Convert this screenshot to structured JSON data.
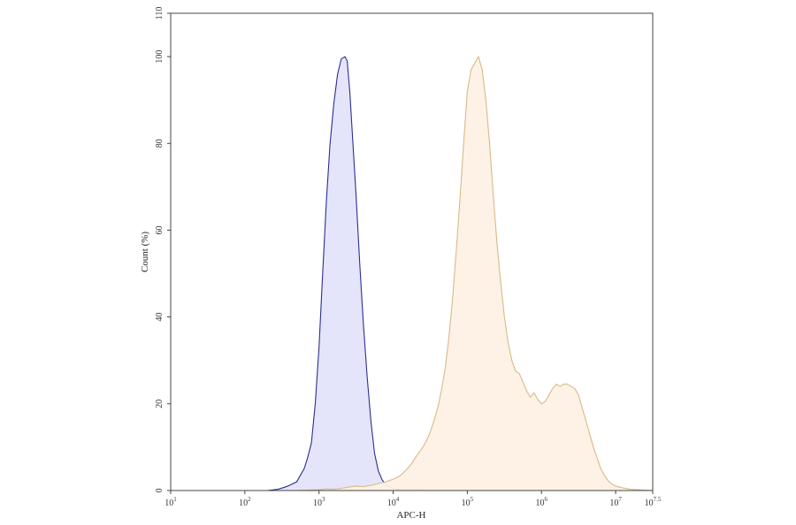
{
  "chart_data": {
    "type": "area",
    "title": "",
    "xlabel": "APC-H",
    "ylabel": "Count (%)",
    "x_scale": "log10",
    "xlim": [
      10,
      31622776
    ],
    "ylim": [
      0,
      110
    ],
    "x_ticks": [
      {
        "base": "10",
        "exp": "1",
        "value": 10
      },
      {
        "base": "10",
        "exp": "2",
        "value": 100
      },
      {
        "base": "10",
        "exp": "3",
        "value": 1000
      },
      {
        "base": "10",
        "exp": "4",
        "value": 10000
      },
      {
        "base": "10",
        "exp": "5",
        "value": 100000
      },
      {
        "base": "10",
        "exp": "6",
        "value": 1000000
      },
      {
        "base": "10",
        "exp": "7",
        "value": 10000000
      },
      {
        "base": "10",
        "exp": "7.5",
        "value": 31622776
      }
    ],
    "y_ticks": [
      "0",
      "20",
      "40",
      "60",
      "80",
      "100",
      "110"
    ],
    "y_tick_values": [
      0,
      20,
      40,
      60,
      80,
      100,
      110
    ],
    "grid": false,
    "series": [
      {
        "color": "#2b2f8f",
        "fill": "#e3e4fb",
        "x": [
          10,
          200,
          280,
          350,
          400,
          500,
          560,
          630,
          700,
          790,
          890,
          1000,
          1120,
          1260,
          1410,
          1580,
          1780,
          2000,
          2240,
          2400,
          2510,
          2600,
          2820,
          3160,
          3550,
          3980,
          4470,
          5010,
          5620,
          6310,
          7080,
          7940,
          8910,
          10000,
          11220,
          12590,
          14130,
          15850,
          20000,
          31620,
          50120,
          100000,
          1000000
        ],
        "y": [
          0,
          0,
          0.3,
          0.8,
          1.2,
          2,
          3.5,
          5,
          7.5,
          11,
          20,
          33,
          50,
          67,
          80,
          89,
          96,
          99.5,
          100,
          99,
          95,
          92,
          82,
          68,
          52,
          38,
          26,
          16,
          8.5,
          4.5,
          2.5,
          1.3,
          0.8,
          0.5,
          0.3,
          0.2,
          0.15,
          0.1,
          0.2,
          0.1,
          0,
          0,
          0
        ]
      },
      {
        "color": "#d9b98a",
        "fill": "#fdf1e4",
        "x": [
          10,
          500,
          1000,
          1260,
          1580,
          2000,
          2510,
          3160,
          3980,
          5010,
          6310,
          7940,
          10000,
          11220,
          12590,
          14130,
          15850,
          17780,
          19950,
          22390,
          25120,
          28180,
          31620,
          35480,
          39810,
          44670,
          50120,
          56230,
          63100,
          70790,
          79430,
          89130,
          100000,
          112200,
          125900,
          141300,
          158500,
          177800,
          199500,
          223900,
          251200,
          281800,
          316200,
          354800,
          398100,
          446700,
          501200,
          562300,
          631000,
          707900,
          794300,
          891300,
          1000000,
          1122000,
          1259000,
          1413000,
          1585000,
          1778000,
          1995000,
          2239000,
          2512000,
          2818000,
          3162000,
          3548000,
          3981000,
          4467000,
          5012000,
          5623000,
          6310000,
          7079000,
          7943000,
          8913000,
          10000000,
          12590000,
          15850000,
          31622776
        ],
        "y": [
          0,
          0,
          0.2,
          0.4,
          0.3,
          0.5,
          0.8,
          1.0,
          0.9,
          1.2,
          1.6,
          2.0,
          2.6,
          3.0,
          3.5,
          4.3,
          5.2,
          6.2,
          7.6,
          8.8,
          10,
          11.5,
          13.5,
          16,
          19,
          23,
          28,
          35,
          44,
          55,
          67,
          80,
          92,
          97,
          98.5,
          100,
          97,
          90,
          80,
          68,
          57,
          48,
          40,
          34,
          30,
          27.5,
          27,
          25,
          23,
          21.5,
          22.5,
          21,
          20,
          20.5,
          22,
          23.5,
          24.5,
          24,
          24.5,
          24.5,
          24,
          23.5,
          22,
          19,
          16,
          13,
          10,
          7.5,
          5,
          3.5,
          2.2,
          1.5,
          1.0,
          0.6,
          0.3,
          0
        ]
      }
    ]
  }
}
